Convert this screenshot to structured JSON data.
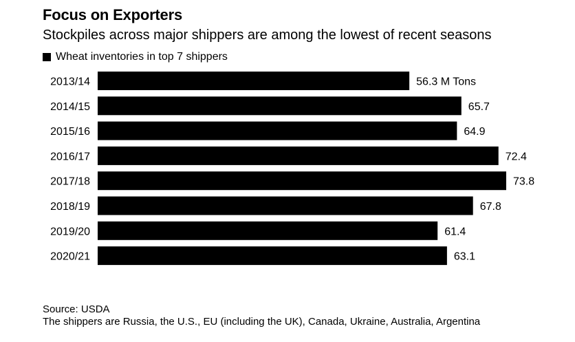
{
  "title": "Focus on Exporters",
  "subtitle": "Stockpiles across major shippers are among the lowest of recent seasons",
  "source": "Source: USDA",
  "note": "The shippers are Russia, the U.S., EU (including the UK), Canada, Ukraine, Australia, Argentina",
  "colors": {
    "bar": "#000000",
    "background": "#ffffff"
  },
  "chart_data": {
    "type": "bar",
    "orientation": "horizontal",
    "series": [
      {
        "name": "Wheat inventories in top 7 shippers",
        "values": [
          56.3,
          65.7,
          64.9,
          72.4,
          73.8,
          67.8,
          61.4,
          63.1
        ]
      }
    ],
    "categories": [
      "2013/14",
      "2014/15",
      "2015/16",
      "2016/17",
      "2017/18",
      "2018/19",
      "2019/20",
      "2020/21"
    ],
    "value_labels": [
      "56.3 M Tons",
      "65.7",
      "64.9",
      "72.4",
      "73.8",
      "67.8",
      "61.4",
      "63.1"
    ],
    "xlim": [
      0,
      73.8
    ],
    "grid": false,
    "legend": "top-left"
  }
}
